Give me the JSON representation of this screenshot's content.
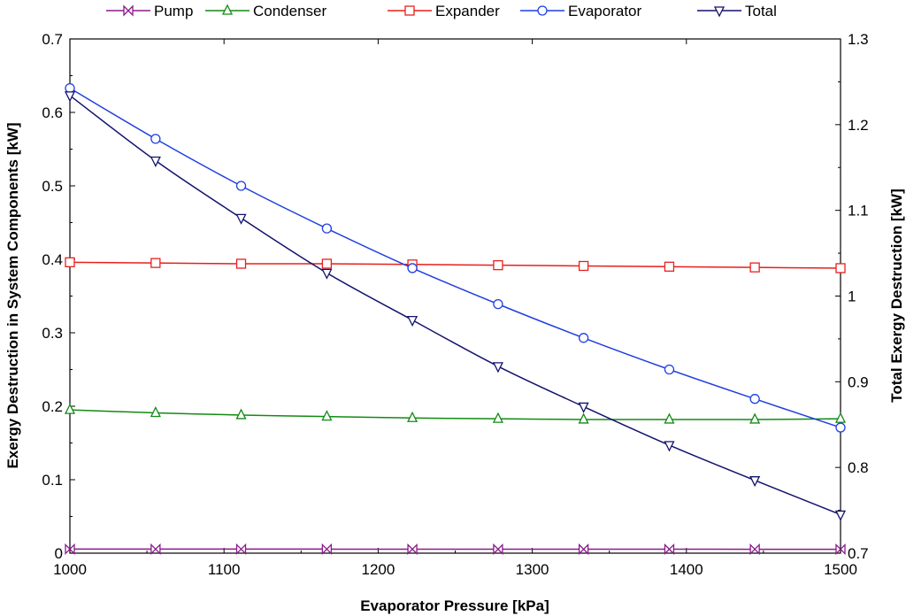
{
  "chart_data": {
    "type": "line",
    "x": [
      1000,
      1055.6,
      1111.1,
      1166.7,
      1222.2,
      1277.8,
      1333.3,
      1388.9,
      1444.4,
      1500
    ],
    "xlabel": "Evaporator Pressure [kPa]",
    "ylabel": "Exergy Destruction in System Components [kW]",
    "y2label": "Total Exergy Destruction [kW]",
    "xlim": [
      1000,
      1500
    ],
    "ylim": [
      0,
      0.7
    ],
    "y2lim": [
      0.7,
      1.3
    ],
    "xticks": [
      "1000",
      "1100",
      "1200",
      "1300",
      "1400",
      "1500"
    ],
    "yticks": [
      "0",
      "0.1",
      "0.2",
      "0.3",
      "0.4",
      "0.5",
      "0.6",
      "0.7"
    ],
    "y2ticks": [
      "0.7",
      "0.8",
      "0.9",
      "1",
      "1.1",
      "1.2",
      "1.3"
    ],
    "legend_position": "top",
    "series": [
      {
        "name": "Pump",
        "axis": "left",
        "color": "#8b1a8b",
        "marker": "bowtie",
        "values": [
          0.0055,
          0.0055,
          0.0055,
          0.0055,
          0.0054,
          0.0054,
          0.0054,
          0.0054,
          0.0053,
          0.0053
        ]
      },
      {
        "name": "Condenser",
        "axis": "left",
        "color": "#138a13",
        "marker": "triangle",
        "values": [
          0.195,
          0.191,
          0.188,
          0.186,
          0.184,
          0.183,
          0.182,
          0.182,
          0.182,
          0.183
        ]
      },
      {
        "name": "Expander",
        "axis": "left",
        "color": "#e8201c",
        "marker": "square",
        "values": [
          0.396,
          0.395,
          0.394,
          0.394,
          0.393,
          0.392,
          0.391,
          0.39,
          0.389,
          0.388
        ]
      },
      {
        "name": "Evaporator",
        "axis": "left",
        "color": "#1f3fe0",
        "marker": "circle",
        "values": [
          0.633,
          0.564,
          0.5,
          0.442,
          0.388,
          0.339,
          0.293,
          0.25,
          0.21,
          0.171
        ]
      },
      {
        "name": "Total",
        "axis": "right",
        "color": "#12126e",
        "marker": "triangle-down",
        "values": [
          1.234,
          1.158,
          1.091,
          1.027,
          0.972,
          0.918,
          0.871,
          0.826,
          0.785,
          0.745
        ]
      }
    ]
  }
}
